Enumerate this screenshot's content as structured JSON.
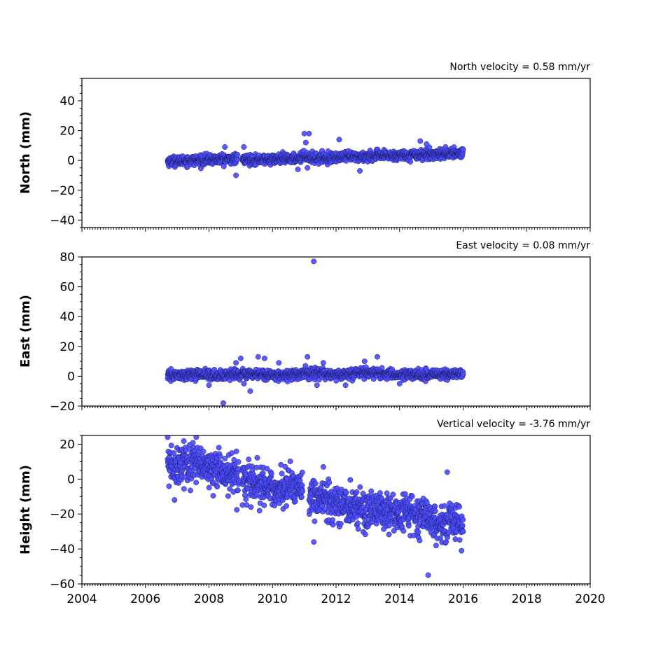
{
  "colors": {
    "point_fill": "#4d4dff",
    "point_edge": "#1a1a66",
    "frame": "#000000"
  },
  "chart_data": [
    {
      "type": "scatter",
      "panel": "north",
      "ylabel": "North (mm)",
      "annotation": "North velocity = 0.58 mm/yr",
      "xlim": [
        2004,
        2020
      ],
      "ylim": [
        -45,
        55
      ],
      "yticks": [
        -40,
        -20,
        0,
        20,
        40
      ],
      "xticks": [
        2004,
        2006,
        2008,
        2010,
        2012,
        2014,
        2016,
        2018,
        2020
      ],
      "show_xtick_labels": false,
      "data_range_x": [
        2006.7,
        2016.0
      ],
      "x": [
        2006.8,
        2007.3,
        2007.8,
        2008.3,
        2008.8,
        2009.3,
        2009.8,
        2010.3,
        2010.8,
        2011.0,
        2011.3,
        2011.8,
        2012.3,
        2012.8,
        2013.3,
        2013.8,
        2014.3,
        2014.8,
        2015.3,
        2015.8,
        2016.0
      ],
      "y": [
        -0.5,
        0.0,
        0.3,
        0.8,
        1.0,
        0.5,
        0.6,
        0.9,
        1.5,
        3.0,
        1.5,
        1.8,
        2.2,
        2.6,
        3.0,
        3.3,
        3.7,
        4.0,
        4.4,
        4.8,
        5.0
      ],
      "noise_sd": 1.6,
      "outliers": [
        {
          "x": 2008.5,
          "y": 9
        },
        {
          "x": 2008.85,
          "y": -10
        },
        {
          "x": 2009.1,
          "y": 9
        },
        {
          "x": 2011.0,
          "y": 18
        },
        {
          "x": 2011.15,
          "y": 18
        },
        {
          "x": 2011.05,
          "y": 12
        },
        {
          "x": 2011.1,
          "y": -5
        },
        {
          "x": 2012.1,
          "y": 14
        },
        {
          "x": 2012.75,
          "y": -7
        },
        {
          "x": 2014.65,
          "y": 13
        },
        {
          "x": 2014.85,
          "y": 11
        },
        {
          "x": 2010.8,
          "y": -6
        }
      ]
    },
    {
      "type": "scatter",
      "panel": "east",
      "ylabel": "East (mm)",
      "annotation": "East velocity = 0.08 mm/yr",
      "xlim": [
        2004,
        2020
      ],
      "ylim": [
        -20,
        80
      ],
      "yticks": [
        -20,
        0,
        20,
        40,
        60,
        80
      ],
      "xticks": [
        2004,
        2006,
        2008,
        2010,
        2012,
        2014,
        2016,
        2018,
        2020
      ],
      "show_xtick_labels": false,
      "data_range_x": [
        2006.7,
        2016.0
      ],
      "x": [
        2006.8,
        2007.3,
        2007.8,
        2008.3,
        2008.8,
        2009.3,
        2009.8,
        2010.3,
        2010.8,
        2011.3,
        2011.8,
        2012.3,
        2012.8,
        2013.3,
        2013.8,
        2014.3,
        2014.8,
        2015.3,
        2015.8,
        2016.0
      ],
      "y": [
        0.3,
        0.8,
        1.5,
        0.5,
        1.2,
        1.5,
        1.0,
        0.8,
        1.5,
        2.0,
        1.5,
        1.0,
        2.5,
        2.0,
        1.0,
        1.0,
        0.8,
        1.2,
        1.5,
        1.0
      ],
      "noise_sd": 1.6,
      "outliers": [
        {
          "x": 2011.3,
          "y": 77
        },
        {
          "x": 2008.45,
          "y": -18
        },
        {
          "x": 2009.3,
          "y": -10
        },
        {
          "x": 2008.0,
          "y": -6
        },
        {
          "x": 2009.0,
          "y": 12
        },
        {
          "x": 2008.85,
          "y": 9
        },
        {
          "x": 2009.55,
          "y": 13
        },
        {
          "x": 2009.75,
          "y": 12
        },
        {
          "x": 2010.2,
          "y": 9
        },
        {
          "x": 2011.1,
          "y": 13
        },
        {
          "x": 2011.6,
          "y": 9
        },
        {
          "x": 2012.3,
          "y": -6
        },
        {
          "x": 2012.9,
          "y": 10
        },
        {
          "x": 2013.3,
          "y": 13
        },
        {
          "x": 2014.0,
          "y": -5
        },
        {
          "x": 2009.1,
          "y": -5
        },
        {
          "x": 2011.4,
          "y": -6
        }
      ]
    },
    {
      "type": "scatter",
      "panel": "height",
      "ylabel": "Height (mm)",
      "annotation": "Vertical velocity = -3.76 mm/yr",
      "xlim": [
        2004,
        2020
      ],
      "ylim": [
        -60,
        25
      ],
      "yticks": [
        -60,
        -40,
        -20,
        0,
        20
      ],
      "xticks": [
        2004,
        2006,
        2008,
        2010,
        2012,
        2014,
        2016,
        2018,
        2020
      ],
      "xtick_labels": [
        "2004",
        "2006",
        "2008",
        "2010",
        "2012",
        "2014",
        "2016",
        "2018",
        "2020"
      ],
      "show_xtick_labels": true,
      "data_range_x": [
        2006.7,
        2016.0
      ],
      "x": [
        2006.8,
        2007.2,
        2007.6,
        2008.0,
        2008.4,
        2008.8,
        2009.2,
        2009.6,
        2010.0,
        2010.4,
        2010.8,
        2011.2,
        2011.6,
        2012.0,
        2012.4,
        2012.8,
        2013.2,
        2013.6,
        2014.0,
        2014.4,
        2014.8,
        2015.2,
        2015.6,
        2016.0
      ],
      "y": [
        7,
        9,
        8,
        6,
        4,
        2,
        -3,
        -4,
        -6,
        -5,
        -4,
        -10,
        -12,
        -14,
        -15,
        -16,
        -18,
        -19,
        -20,
        -21,
        -22,
        -24,
        -25,
        -25
      ],
      "noise_sd": 5.5,
      "outliers": [
        {
          "x": 2014.9,
          "y": -55
        },
        {
          "x": 2011.3,
          "y": -36
        },
        {
          "x": 2015.5,
          "y": 4
        },
        {
          "x": 2015.15,
          "y": -38
        },
        {
          "x": 2007.6,
          "y": 24
        },
        {
          "x": 2006.7,
          "y": 24
        },
        {
          "x": 2015.95,
          "y": -41
        },
        {
          "x": 2011.6,
          "y": 7
        }
      ]
    }
  ]
}
